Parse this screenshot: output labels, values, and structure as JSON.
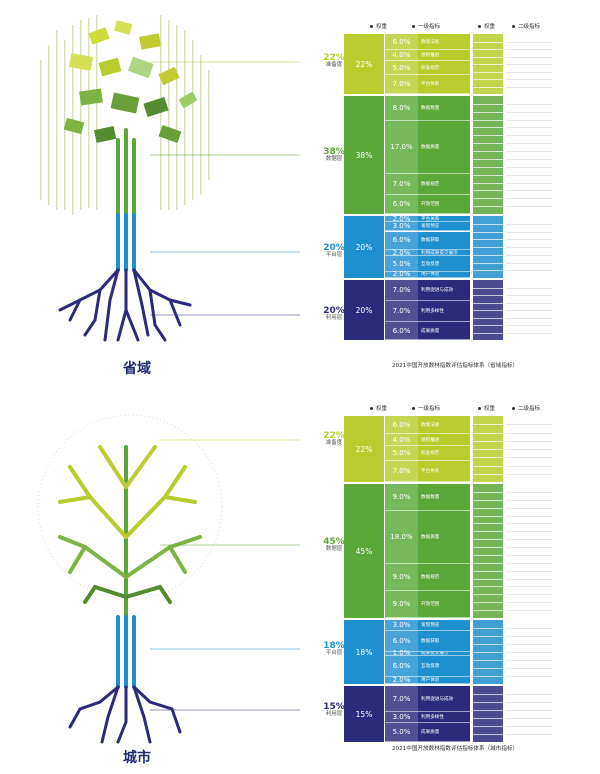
{
  "provincial": {
    "region_label": "省域",
    "caption": "2021中国开放数林指数评估指标体系（省域指标）",
    "headers": {
      "weight": "权重",
      "level1": "一级指标",
      "weight2": "权重",
      "level2": "二级指标"
    },
    "dimensions": [
      {
        "key": "准备度",
        "pct": "22%",
        "name": "准备度",
        "color": "#b8cc2e",
        "level1": [
          {
            "weight": "6.0%",
            "name": "政策法规"
          },
          {
            "weight": "4.0%",
            "name": "组织推进"
          },
          {
            "weight": "5.0%",
            "name": "标准规范"
          },
          {
            "weight": "7.0%",
            "name": "平台体系"
          }
        ]
      },
      {
        "key": "数据层",
        "pct": "38%",
        "name": "数据层",
        "color": "#5aa838",
        "level1": [
          {
            "weight": "8.0%",
            "name": "数据数量"
          },
          {
            "weight": "17.0%",
            "name": "数据质量"
          },
          {
            "weight": "7.0%",
            "name": "数据规范"
          },
          {
            "weight": "6.0%",
            "name": "开放范围"
          }
        ]
      },
      {
        "key": "平台层",
        "pct": "20%",
        "name": "平台层",
        "color": "#1e8fcf",
        "level1": [
          {
            "weight": "2.0%",
            "name": "平台关系"
          },
          {
            "weight": "3.0%",
            "name": "发现预览"
          },
          {
            "weight": "6.0%",
            "name": "数据获取"
          },
          {
            "weight": "2.0%",
            "name": "利用成果提交展示"
          },
          {
            "weight": "5.0%",
            "name": "互动反馈"
          },
          {
            "weight": "2.0%",
            "name": "用户体验"
          }
        ]
      },
      {
        "key": "利用层",
        "pct": "20%",
        "name": "利用层",
        "color": "#2c2a7a",
        "level1": [
          {
            "weight": "7.0%",
            "name": "利用促进与成效"
          },
          {
            "weight": "7.0%",
            "name": "利用多样性"
          },
          {
            "weight": "6.0%",
            "name": "成果质量"
          }
        ]
      }
    ]
  },
  "city": {
    "region_label": "城市",
    "caption": "2021中国开放数林指数评估指标体系（城市指标）",
    "headers": {
      "weight": "权重",
      "level1": "一级指标",
      "weight2": "权重",
      "level2": "二级指标"
    },
    "dimensions": [
      {
        "key": "准备度",
        "pct": "22%",
        "name": "准备度",
        "color": "#b8cc2e",
        "level1": [
          {
            "weight": "6.0%",
            "name": "政策法规"
          },
          {
            "weight": "4.0%",
            "name": "组织推进"
          },
          {
            "weight": "5.0%",
            "name": "标准规范"
          },
          {
            "weight": "7.0%",
            "name": "平台体系"
          }
        ]
      },
      {
        "key": "数据层",
        "pct": "45%",
        "name": "数据层",
        "color": "#5aa838",
        "level1": [
          {
            "weight": "9.0%",
            "name": "数据数量"
          },
          {
            "weight": "18.0%",
            "name": "数据质量"
          },
          {
            "weight": "9.0%",
            "name": "数据规范"
          },
          {
            "weight": "9.0%",
            "name": "开放范围"
          }
        ]
      },
      {
        "key": "平台层",
        "pct": "18%",
        "name": "平台层",
        "color": "#1e8fcf",
        "level1": [
          {
            "weight": "3.0%",
            "name": "发现预览"
          },
          {
            "weight": "6.0%",
            "name": "数据获取"
          },
          {
            "weight": "1.0%",
            "name": "成果提交展示"
          },
          {
            "weight": "6.0%",
            "name": "互动反馈"
          },
          {
            "weight": "2.0%",
            "name": "用户体验"
          }
        ]
      },
      {
        "key": "利用层",
        "pct": "15%",
        "name": "利用层",
        "color": "#2c2a7a",
        "level1": [
          {
            "weight": "7.0%",
            "name": "利用促进与成效"
          },
          {
            "weight": "3.0%",
            "name": "利用多样性"
          },
          {
            "weight": "5.0%",
            "name": "成果质量"
          }
        ]
      }
    ]
  }
}
